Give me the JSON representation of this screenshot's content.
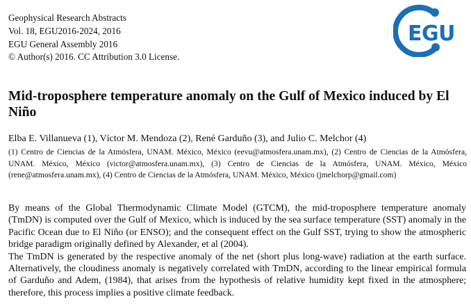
{
  "header": {
    "line1": "Geophysical Research Abstracts",
    "line2": "Vol. 18, EGU2016-2024, 2016",
    "line3": "EGU General Assembly 2016",
    "line4": "© Author(s) 2016. CC Attribution 3.0 License."
  },
  "logo": {
    "text": "EGU",
    "color": "#1a6fb5"
  },
  "title": "Mid-troposphere temperature anomaly on the Gulf of Mexico induced by El Niño",
  "authors": "Elba E. Villanueva (1), Víctor M. Mendoza (2), René Garduño (3), and Julio C. Melchor (4)",
  "affiliations": "(1) Centro de Ciencias de la Atmósfera, UNAM. México, México (eevu@atmosfera.unam.mx), (2) Centro de Ciencias de la Atmósfera, UNAM. México, México (victor@atmosfera.unam.mx), (3) Centro de Ciencias de la Atmósfera, UNAM. México, México (rene@atmosfera.unam.mx), (4) Centro de Ciencias de la Atmósfera, UNAM. México, México (jmelchorp@gmail.com)",
  "abstract": {
    "p1": "By means of the Global Thermodynamic Climate Model (GTCM), the mid-troposphere temperature anomaly (TmDN) is computed over the Gulf of Mexico, which is induced by the sea surface temperature (SST) anomaly in the Pacific Ocean due to El Niño (or ENSO); and the consequent effect on the Gulf SST, trying to show the atmospheric bridge paradigm originally defined by Alexander, et al (2004).",
    "p2": "The TmDN is generated by the respective anomaly of the net (short plus long-wave) radiation at the earth sur­face. Alternatively, the cloudiness anomaly is negatively correlated with TmDN, according to the linear empirical formula of Garduño and Adem, (1984), that arises from the hypothesis of relative humidity kept fixed in the atmo­sphere; therefore, this process implies a positive climate feedback."
  }
}
